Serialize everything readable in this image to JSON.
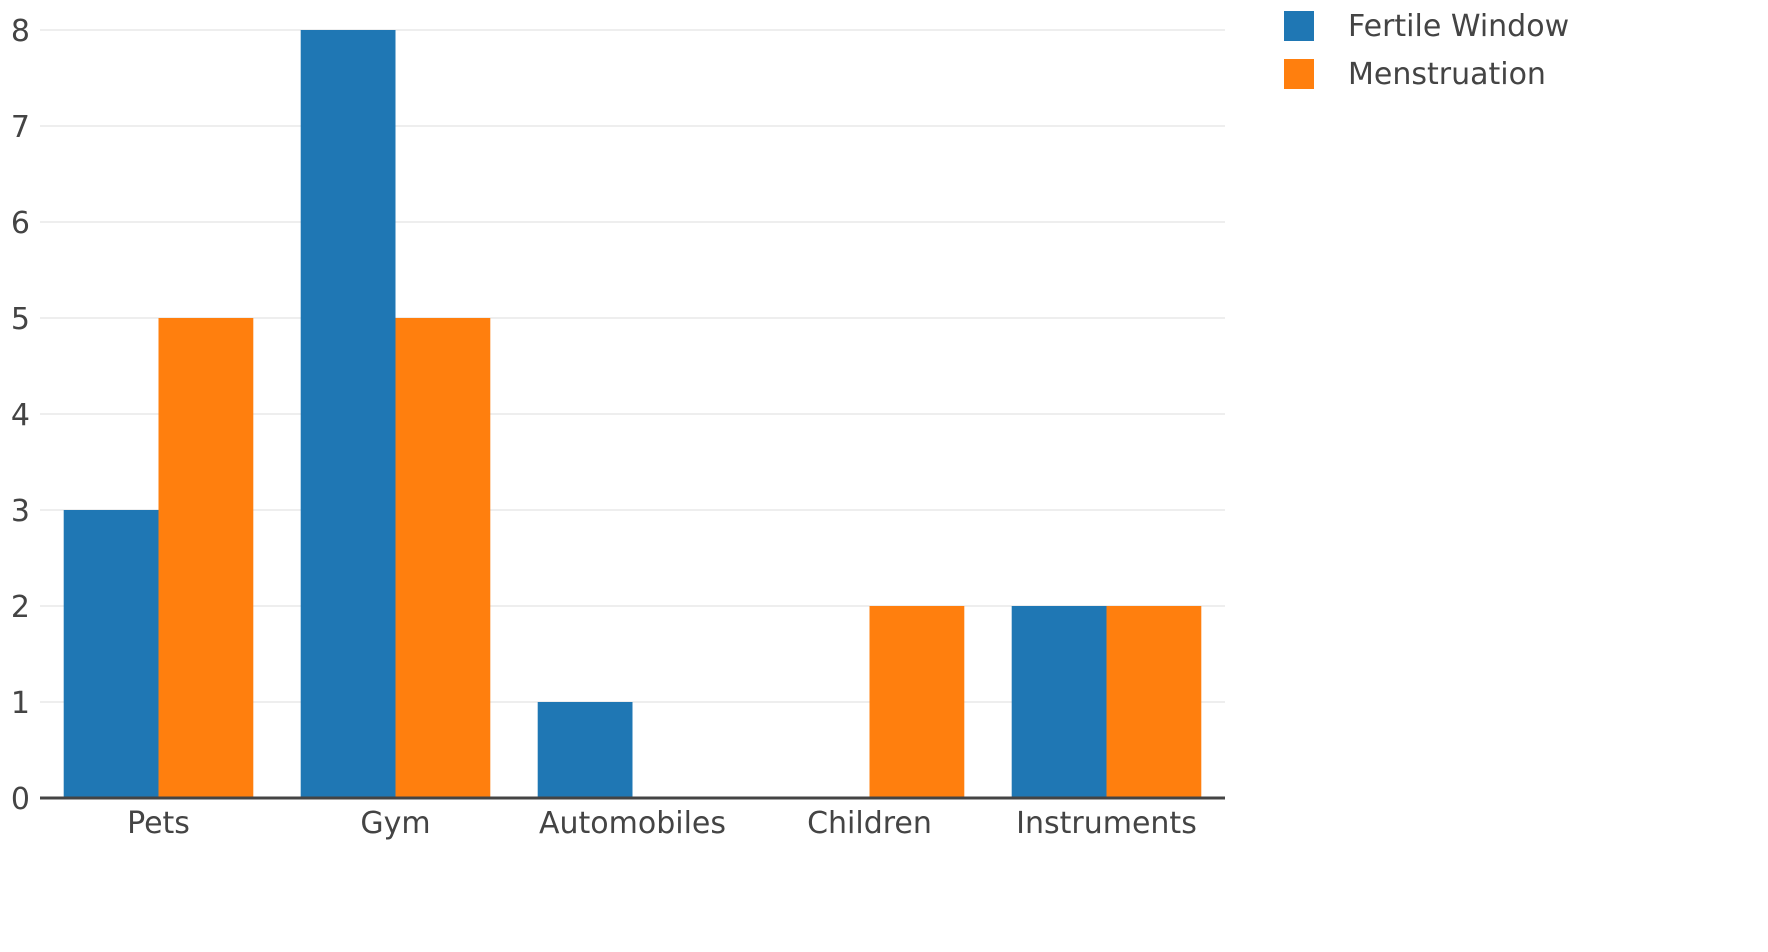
{
  "chart_data": {
    "type": "bar",
    "categories": [
      "Pets",
      "Gym",
      "Automobiles",
      "Children",
      "Instruments"
    ],
    "series": [
      {
        "name": "Fertile Window",
        "color": "#1f77b4",
        "values": [
          3,
          8,
          1,
          0,
          2
        ]
      },
      {
        "name": "Menstruation",
        "color": "#ff7f0e",
        "values": [
          5,
          5,
          0,
          2,
          2
        ]
      }
    ],
    "title": "",
    "xlabel": "",
    "ylabel": "",
    "ylim": [
      0,
      8
    ],
    "yticks": [
      0,
      1,
      2,
      3,
      4,
      5,
      6,
      7,
      8
    ],
    "grid": true,
    "legend_position": "top-right"
  }
}
